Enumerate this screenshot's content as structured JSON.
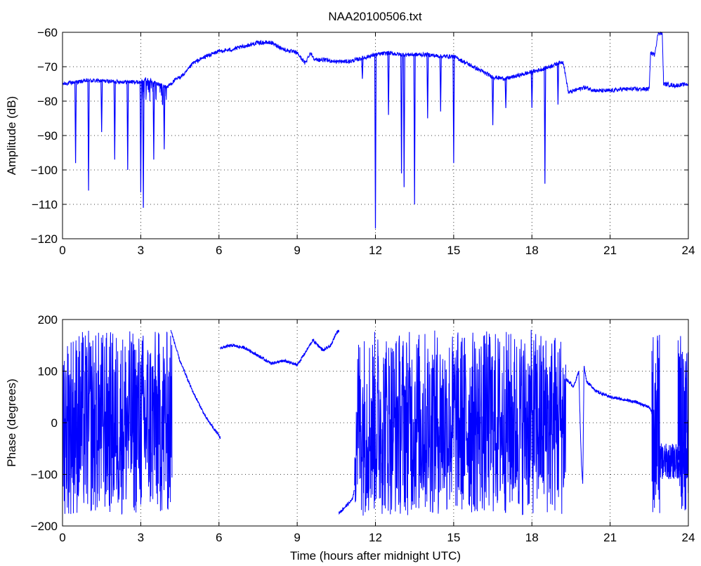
{
  "figure": {
    "title": "NAA20100506.txt",
    "background": "#ffffff",
    "trace_color": "#0000ff",
    "axis_color": "#000000",
    "grid_color": "#000000"
  },
  "chart_data": [
    {
      "type": "line",
      "title": "NAA20100506.txt",
      "xlabel": "",
      "ylabel": "Amplitude (dB)",
      "xlim": [
        0,
        24
      ],
      "ylim": [
        -120,
        -60
      ],
      "xticks": [
        0,
        3,
        6,
        9,
        12,
        15,
        18,
        21,
        24
      ],
      "yticks": [
        -120,
        -110,
        -100,
        -90,
        -80,
        -70,
        -60
      ],
      "xtick_labels": [
        "0",
        "3",
        "6",
        "9",
        "12",
        "15",
        "18",
        "21",
        "24"
      ],
      "ytick_labels": [
        "−120",
        "−110",
        "−100",
        "−90",
        "−80",
        "−70",
        "−60"
      ],
      "grid": true,
      "grid_style": "dotted",
      "baseline": [
        [
          0,
          -75
        ],
        [
          0.5,
          -74.5
        ],
        [
          1,
          -74
        ],
        [
          2,
          -74.3
        ],
        [
          3,
          -74.5
        ],
        [
          3.2,
          -73.5
        ],
        [
          3.5,
          -74.5
        ],
        [
          4,
          -76
        ],
        [
          4.3,
          -74
        ],
        [
          4.7,
          -72
        ],
        [
          5,
          -69
        ],
        [
          5.5,
          -67
        ],
        [
          6,
          -65.5
        ],
        [
          6.5,
          -65
        ],
        [
          7,
          -64
        ],
        [
          7.5,
          -63
        ],
        [
          8,
          -63
        ],
        [
          8.5,
          -65
        ],
        [
          9,
          -66
        ],
        [
          9.3,
          -69
        ],
        [
          9.5,
          -66
        ],
        [
          9.7,
          -68
        ],
        [
          10,
          -68
        ],
        [
          10.5,
          -68.5
        ],
        [
          11,
          -68.5
        ],
        [
          11.5,
          -67.5
        ],
        [
          12,
          -66.5
        ],
        [
          12.5,
          -66
        ],
        [
          13,
          -66.5
        ],
        [
          13.5,
          -66.5
        ],
        [
          14,
          -66.5
        ],
        [
          14.5,
          -67
        ],
        [
          15,
          -67
        ],
        [
          15.5,
          -69
        ],
        [
          16,
          -71
        ],
        [
          16.5,
          -73
        ],
        [
          17,
          -73.5
        ],
        [
          17.5,
          -72.5
        ],
        [
          18,
          -71.5
        ],
        [
          18.5,
          -70.5
        ],
        [
          19,
          -69
        ],
        [
          19.2,
          -68.5
        ],
        [
          19.4,
          -77.5
        ],
        [
          19.8,
          -76.5
        ],
        [
          20,
          -76
        ],
        [
          20.5,
          -77
        ],
        [
          21,
          -77
        ],
        [
          21.5,
          -76.5
        ],
        [
          22,
          -76.5
        ],
        [
          22.5,
          -76.5
        ],
        [
          22.55,
          -66
        ],
        [
          22.7,
          -66.5
        ],
        [
          22.85,
          -60
        ],
        [
          23,
          -60.5
        ],
        [
          23.05,
          -75
        ],
        [
          23.5,
          -75.5
        ],
        [
          24,
          -75
        ]
      ],
      "noise": 0.6,
      "dips": [
        [
          0.5,
          -98
        ],
        [
          1.0,
          -106
        ],
        [
          1.5,
          -89
        ],
        [
          2.0,
          -97
        ],
        [
          2.5,
          -100
        ],
        [
          3.0,
          -106.5
        ],
        [
          3.1,
          -111
        ],
        [
          3.5,
          -97
        ],
        [
          3.9,
          -94
        ],
        [
          11.5,
          -73.5
        ],
        [
          12.0,
          -117
        ],
        [
          12.5,
          -84
        ],
        [
          13.0,
          -101
        ],
        [
          13.1,
          -105
        ],
        [
          13.5,
          -110
        ],
        [
          14.0,
          -85
        ],
        [
          14.5,
          -83
        ],
        [
          15.0,
          -98
        ],
        [
          16.5,
          -87
        ],
        [
          17.0,
          -82
        ],
        [
          18.0,
          -82
        ],
        [
          18.5,
          -104
        ],
        [
          19.0,
          -81
        ]
      ]
    },
    {
      "type": "line",
      "title": "",
      "xlabel": "Time (hours after midnight UTC)",
      "ylabel": "Phase (degrees)",
      "xlim": [
        0,
        24
      ],
      "ylim": [
        -200,
        200
      ],
      "xticks": [
        0,
        3,
        6,
        9,
        12,
        15,
        18,
        21,
        24
      ],
      "yticks": [
        -200,
        -100,
        0,
        100,
        200
      ],
      "xtick_labels": [
        "0",
        "3",
        "6",
        "9",
        "12",
        "15",
        "18",
        "21",
        "24"
      ],
      "ytick_labels": [
        "−200",
        "−100",
        "0",
        "100",
        "200"
      ],
      "grid": true,
      "grid_style": "dotted",
      "wrapped_segments": [
        [
          0,
          4.2
        ],
        [
          11.2,
          19.3
        ]
      ],
      "wrapped_range": [
        -180,
        180
      ],
      "smooth_segments": [
        [
          [
            4.15,
            180
          ],
          [
            4.5,
            120
          ],
          [
            5,
            60
          ],
          [
            5.5,
            10
          ],
          [
            6,
            -25
          ],
          [
            6.05,
            -30
          ]
        ],
        [
          [
            6.05,
            145
          ],
          [
            6.5,
            150
          ],
          [
            7,
            145
          ],
          [
            7.5,
            130
          ],
          [
            8,
            115
          ],
          [
            8.5,
            120
          ],
          [
            9,
            112
          ],
          [
            9.3,
            135
          ],
          [
            9.6,
            160
          ],
          [
            10,
            140
          ],
          [
            10.3,
            150
          ],
          [
            10.5,
            175
          ],
          [
            10.6,
            178
          ]
        ],
        [
          [
            10.6,
            -175
          ],
          [
            10.8,
            -165
          ],
          [
            11.1,
            -150
          ],
          [
            11.2,
            -130
          ]
        ],
        [
          [
            19.3,
            85
          ],
          [
            19.6,
            70
          ],
          [
            19.8,
            100
          ],
          [
            19.85,
            0
          ],
          [
            19.9,
            -80
          ],
          [
            19.95,
            -120
          ],
          [
            20.0,
            110
          ],
          [
            20.1,
            80
          ],
          [
            20.5,
            60
          ],
          [
            21,
            50
          ],
          [
            21.5,
            45
          ],
          [
            22,
            40
          ],
          [
            22.5,
            30
          ],
          [
            22.6,
            20
          ]
        ]
      ],
      "noisy_segments": [
        [
          22.6,
          22.9,
          -180,
          180
        ],
        [
          22.9,
          24,
          -110,
          -40
        ],
        [
          23.6,
          24,
          -170,
          180
        ]
      ]
    }
  ]
}
